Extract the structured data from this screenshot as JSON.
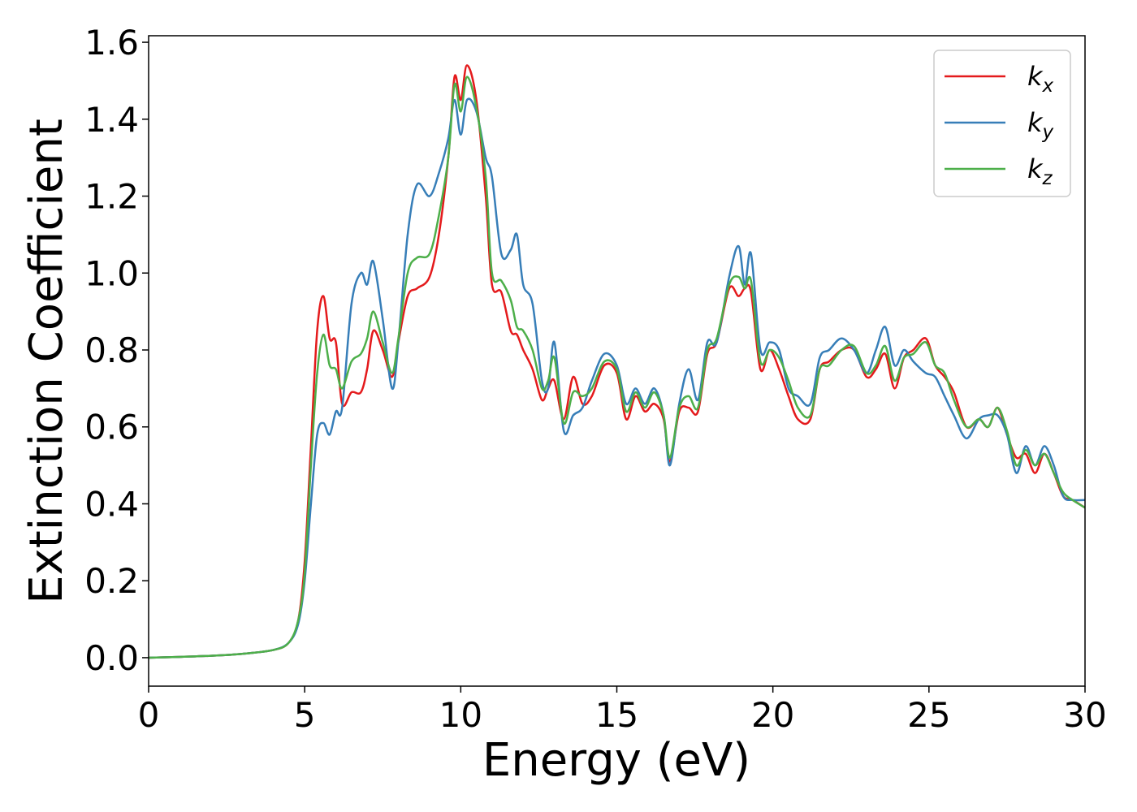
{
  "chart_data": {
    "type": "line",
    "x_label": "Energy (eV)",
    "y_label": "Extinction Coefficient",
    "x": [
      0,
      1,
      2,
      3,
      4,
      4.5,
      4.8,
      5.0,
      5.2,
      5.4,
      5.6,
      5.8,
      6.0,
      6.2,
      6.5,
      6.8,
      7.0,
      7.2,
      7.5,
      7.8,
      8.0,
      8.3,
      8.6,
      9.0,
      9.3,
      9.6,
      9.8,
      10.0,
      10.2,
      10.5,
      10.8,
      11.0,
      11.3,
      11.6,
      11.8,
      12.0,
      12.3,
      12.6,
      12.8,
      13.0,
      13.3,
      13.6,
      13.9,
      14.2,
      14.6,
      15.0,
      15.3,
      15.6,
      15.9,
      16.2,
      16.5,
      16.7,
      17.0,
      17.3,
      17.6,
      17.9,
      18.2,
      18.6,
      18.9,
      19.1,
      19.3,
      19.6,
      19.9,
      20.2,
      20.5,
      20.8,
      21.2,
      21.5,
      21.8,
      22.2,
      22.6,
      23.0,
      23.3,
      23.6,
      23.9,
      24.2,
      24.5,
      24.9,
      25.2,
      25.5,
      25.8,
      26.2,
      26.6,
      26.9,
      27.2,
      27.5,
      27.8,
      28.1,
      28.4,
      28.7,
      29.0,
      29.3,
      29.6,
      30.0
    ],
    "series": [
      {
        "name": "kx",
        "color": "#e41a1c",
        "values": [
          0,
          0.002,
          0.005,
          0.01,
          0.02,
          0.04,
          0.1,
          0.25,
          0.55,
          0.85,
          0.94,
          0.83,
          0.82,
          0.66,
          0.69,
          0.69,
          0.75,
          0.85,
          0.8,
          0.73,
          0.82,
          0.94,
          0.96,
          0.99,
          1.1,
          1.3,
          1.51,
          1.45,
          1.54,
          1.45,
          1.2,
          0.97,
          0.95,
          0.85,
          0.84,
          0.8,
          0.75,
          0.67,
          0.7,
          0.72,
          0.62,
          0.73,
          0.66,
          0.68,
          0.76,
          0.74,
          0.62,
          0.68,
          0.64,
          0.66,
          0.62,
          0.51,
          0.64,
          0.65,
          0.64,
          0.79,
          0.82,
          0.96,
          0.94,
          0.96,
          0.95,
          0.75,
          0.8,
          0.75,
          0.68,
          0.62,
          0.62,
          0.75,
          0.77,
          0.8,
          0.8,
          0.73,
          0.75,
          0.79,
          0.7,
          0.78,
          0.8,
          0.83,
          0.76,
          0.73,
          0.69,
          0.6,
          0.62,
          0.6,
          0.65,
          0.58,
          0.52,
          0.53,
          0.48,
          0.53,
          0.48,
          0.42,
          0.41,
          0.39
        ]
      },
      {
        "name": "ky",
        "color": "#377eb8",
        "values": [
          0,
          0.002,
          0.005,
          0.01,
          0.02,
          0.04,
          0.09,
          0.2,
          0.4,
          0.58,
          0.61,
          0.58,
          0.64,
          0.65,
          0.92,
          1.0,
          0.97,
          1.03,
          0.88,
          0.7,
          0.82,
          1.1,
          1.23,
          1.2,
          1.26,
          1.35,
          1.45,
          1.36,
          1.45,
          1.42,
          1.3,
          1.25,
          1.05,
          1.06,
          1.1,
          0.97,
          0.92,
          0.72,
          0.7,
          0.82,
          0.59,
          0.63,
          0.65,
          0.72,
          0.79,
          0.76,
          0.66,
          0.7,
          0.66,
          0.7,
          0.63,
          0.5,
          0.66,
          0.75,
          0.67,
          0.82,
          0.82,
          0.99,
          1.07,
          0.97,
          1.05,
          0.8,
          0.82,
          0.8,
          0.7,
          0.68,
          0.66,
          0.78,
          0.8,
          0.83,
          0.8,
          0.74,
          0.8,
          0.86,
          0.76,
          0.8,
          0.77,
          0.74,
          0.73,
          0.68,
          0.63,
          0.57,
          0.62,
          0.63,
          0.63,
          0.58,
          0.48,
          0.55,
          0.5,
          0.55,
          0.5,
          0.42,
          0.41,
          0.41
        ]
      },
      {
        "name": "kz",
        "color": "#4daf4a",
        "values": [
          0,
          0.002,
          0.005,
          0.01,
          0.02,
          0.04,
          0.1,
          0.22,
          0.5,
          0.74,
          0.84,
          0.76,
          0.75,
          0.7,
          0.77,
          0.79,
          0.83,
          0.9,
          0.82,
          0.74,
          0.83,
          1.0,
          1.04,
          1.05,
          1.15,
          1.3,
          1.49,
          1.42,
          1.51,
          1.43,
          1.25,
          1.0,
          0.98,
          0.93,
          0.86,
          0.85,
          0.8,
          0.7,
          0.72,
          0.78,
          0.61,
          0.69,
          0.68,
          0.7,
          0.77,
          0.75,
          0.64,
          0.69,
          0.65,
          0.69,
          0.63,
          0.52,
          0.65,
          0.68,
          0.65,
          0.8,
          0.83,
          0.97,
          0.99,
          0.96,
          0.98,
          0.77,
          0.8,
          0.78,
          0.72,
          0.65,
          0.63,
          0.75,
          0.76,
          0.8,
          0.81,
          0.74,
          0.76,
          0.81,
          0.72,
          0.78,
          0.79,
          0.82,
          0.76,
          0.74,
          0.67,
          0.6,
          0.62,
          0.6,
          0.65,
          0.59,
          0.5,
          0.54,
          0.5,
          0.53,
          0.48,
          0.43,
          0.41,
          0.39
        ]
      }
    ],
    "xlim": [
      0,
      30
    ],
    "xticks": [
      0,
      5,
      10,
      15,
      20,
      25,
      30
    ],
    "ylim": [
      -0.074,
      1.617
    ],
    "yticks": [
      {
        "value": 0,
        "label": "0.0"
      },
      0.2,
      0.4,
      0.6,
      0.8,
      {
        "value": 1,
        "label": "1.0"
      },
      1.2,
      1.4,
      1.6
    ],
    "grid": false,
    "legend": "upper right"
  }
}
